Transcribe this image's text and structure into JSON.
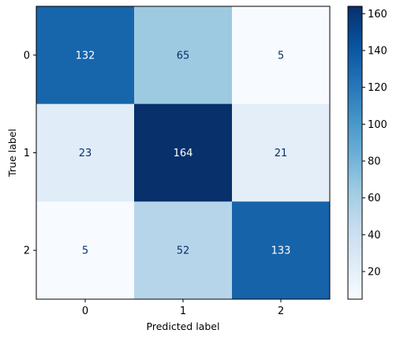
{
  "chart_data": {
    "type": "heatmap",
    "xlabel": "Predicted label",
    "ylabel": "True label",
    "x_categories": [
      "0",
      "1",
      "2"
    ],
    "y_categories": [
      "0",
      "1",
      "2"
    ],
    "values": [
      [
        132,
        65,
        5
      ],
      [
        23,
        164,
        21
      ],
      [
        5,
        52,
        133
      ]
    ],
    "colormap": "Blues",
    "colorbar": {
      "min": 5,
      "max": 164,
      "ticks": [
        20,
        40,
        60,
        80,
        100,
        120,
        140,
        160
      ]
    },
    "text_colors": {
      "light": "#ffffff",
      "dark": "#08306b"
    },
    "grid": false
  }
}
